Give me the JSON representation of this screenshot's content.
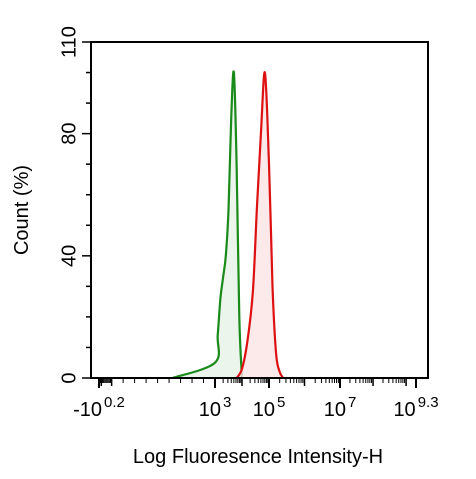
{
  "chart_data": {
    "type": "area",
    "title": "",
    "xlabel": "Log Fluoresence Intensity-H",
    "ylabel": "Count  (%)",
    "xscale": "biexponential-log",
    "xlim": [
      -10,
      1995262315
    ],
    "ylim": [
      0,
      110
    ],
    "yticks": [
      0,
      40,
      80,
      110
    ],
    "xticks": [
      {
        "base": "-10",
        "exp": "0.2",
        "value": -10
      },
      {
        "base": "10",
        "exp": "3",
        "value": 1000
      },
      {
        "base": "10",
        "exp": "5",
        "value": 100000
      },
      {
        "base": "10",
        "exp": "7",
        "value": 10000000
      },
      {
        "base": "10",
        "exp": "9.3",
        "value": 1995262315
      }
    ],
    "grid": false,
    "legend": "none",
    "series": [
      {
        "color": "#1a8a1a",
        "fill": "#e6f3e6",
        "x": [
          630,
          1000,
          1260,
          1580,
          2000,
          2510,
          3160,
          3980,
          5010,
          6310,
          7940,
          10000
        ],
        "y": [
          0,
          5,
          14,
          26,
          33,
          40,
          55,
          85,
          100,
          70,
          20,
          0
        ]
      },
      {
        "color": "#dd1111",
        "fill": "#fbe3e3",
        "x": [
          6310,
          10000,
          15850,
          25120,
          35480,
          50120,
          70790,
          100000,
          125890,
          158490,
          199530,
          251190
        ],
        "y": [
          0,
          3,
          12,
          28,
          55,
          80,
          100,
          70,
          30,
          8,
          2,
          0
        ]
      }
    ]
  }
}
